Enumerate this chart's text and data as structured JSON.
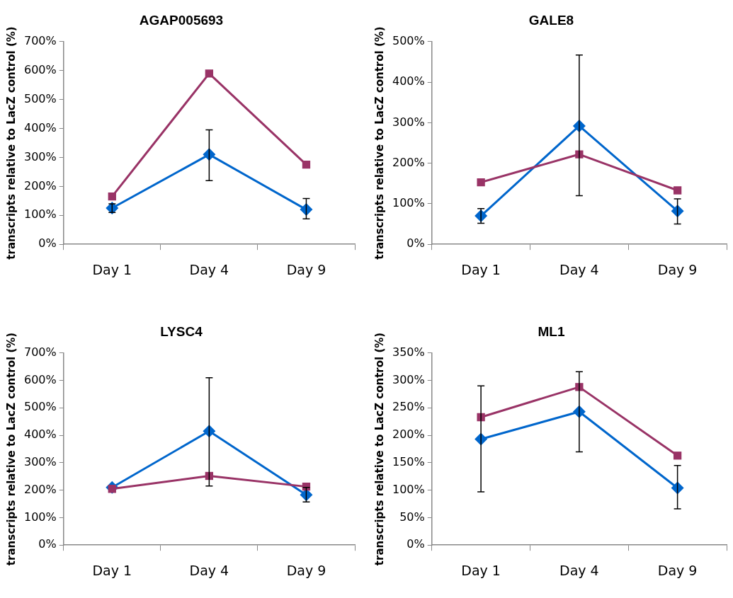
{
  "chart_data": [
    {
      "type": "line",
      "title": "AGAP005693",
      "ylabel": "transcripts relative to LacZ control (%)",
      "categories": [
        "Day 1",
        "Day 4",
        "Day 9"
      ],
      "ylim": [
        0,
        700
      ],
      "yticks": [
        {
          "value": 0,
          "label": "0%"
        },
        {
          "value": 100,
          "label": "100%"
        },
        {
          "value": 200,
          "label": "200%"
        },
        {
          "value": 300,
          "label": "300%"
        },
        {
          "value": 400,
          "label": "400%"
        },
        {
          "value": 500,
          "label": "500%"
        },
        {
          "value": 600,
          "label": "600%"
        },
        {
          "value": 700,
          "label": "700%"
        }
      ],
      "grid": false,
      "legend": false,
      "series": [
        {
          "color": "#0066cc",
          "marker": "diamond",
          "values": [
            125,
            310,
            120
          ],
          "errors": [
            [
              110,
              140
            ],
            [
              220,
              395
            ],
            [
              88,
              158
            ]
          ]
        },
        {
          "color": "#993366",
          "marker": "square",
          "values": [
            165,
            590,
            275
          ]
        }
      ]
    },
    {
      "type": "line",
      "title": "GALE8",
      "ylabel": "transcripts relative to LacZ control (%)",
      "categories": [
        "Day 1",
        "Day 4",
        "Day 9"
      ],
      "ylim": [
        0,
        500
      ],
      "yticks": [
        {
          "value": 0,
          "label": "0%"
        },
        {
          "value": 100,
          "label": "100%"
        },
        {
          "value": 200,
          "label": "200%"
        },
        {
          "value": 300,
          "label": "300%"
        },
        {
          "value": 400,
          "label": "400%"
        },
        {
          "value": 500,
          "label": "500%"
        }
      ],
      "grid": false,
      "legend": false,
      "series": [
        {
          "color": "#0066cc",
          "marker": "diamond",
          "values": [
            70,
            292,
            82
          ],
          "errors": [
            [
              52,
              88
            ],
            [
              120,
              467
            ],
            [
              50,
              112
            ]
          ]
        },
        {
          "color": "#993366",
          "marker": "square",
          "values": [
            153,
            222,
            133
          ]
        }
      ]
    },
    {
      "type": "line",
      "title": "LYSC4",
      "ylabel": "transcripts relative to LacZ control (%)",
      "categories": [
        "Day 1",
        "Day 4",
        "Day 9"
      ],
      "ylim": [
        0,
        700
      ],
      "yticks": [
        {
          "value": 0,
          "label": "0%"
        },
        {
          "value": 100,
          "label": "100%"
        },
        {
          "value": 200,
          "label": "200%"
        },
        {
          "value": 300,
          "label": "300%"
        },
        {
          "value": 400,
          "label": "400%"
        },
        {
          "value": 500,
          "label": "500%"
        },
        {
          "value": 600,
          "label": "600%"
        },
        {
          "value": 700,
          "label": "700%"
        }
      ],
      "grid": false,
      "legend": false,
      "series": [
        {
          "color": "#0066cc",
          "marker": "diamond",
          "values": [
            210,
            415,
            183
          ],
          "errors": [
            null,
            [
              215,
              610
            ],
            [
              157,
              210
            ]
          ]
        },
        {
          "color": "#993366",
          "marker": "square",
          "values": [
            205,
            252,
            213
          ]
        }
      ]
    },
    {
      "type": "line",
      "title": "ML1",
      "ylabel": "transcripts relative to LacZ control (%)",
      "categories": [
        "Day 1",
        "Day 4",
        "Day 9"
      ],
      "ylim": [
        0,
        350
      ],
      "yticks": [
        {
          "value": 0,
          "label": "0%"
        },
        {
          "value": 50,
          "label": "50%"
        },
        {
          "value": 100,
          "label": "100%"
        },
        {
          "value": 150,
          "label": "150%"
        },
        {
          "value": 200,
          "label": "200%"
        },
        {
          "value": 250,
          "label": "250%"
        },
        {
          "value": 300,
          "label": "300%"
        },
        {
          "value": 350,
          "label": "350%"
        }
      ],
      "grid": false,
      "legend": false,
      "series": [
        {
          "color": "#0066cc",
          "marker": "diamond",
          "values": [
            193,
            243,
            104
          ],
          "errors": [
            [
              97,
              290
            ],
            [
              170,
              316
            ],
            [
              66,
              145
            ]
          ]
        },
        {
          "color": "#993366",
          "marker": "square",
          "values": [
            233,
            288,
            163
          ]
        }
      ]
    }
  ]
}
